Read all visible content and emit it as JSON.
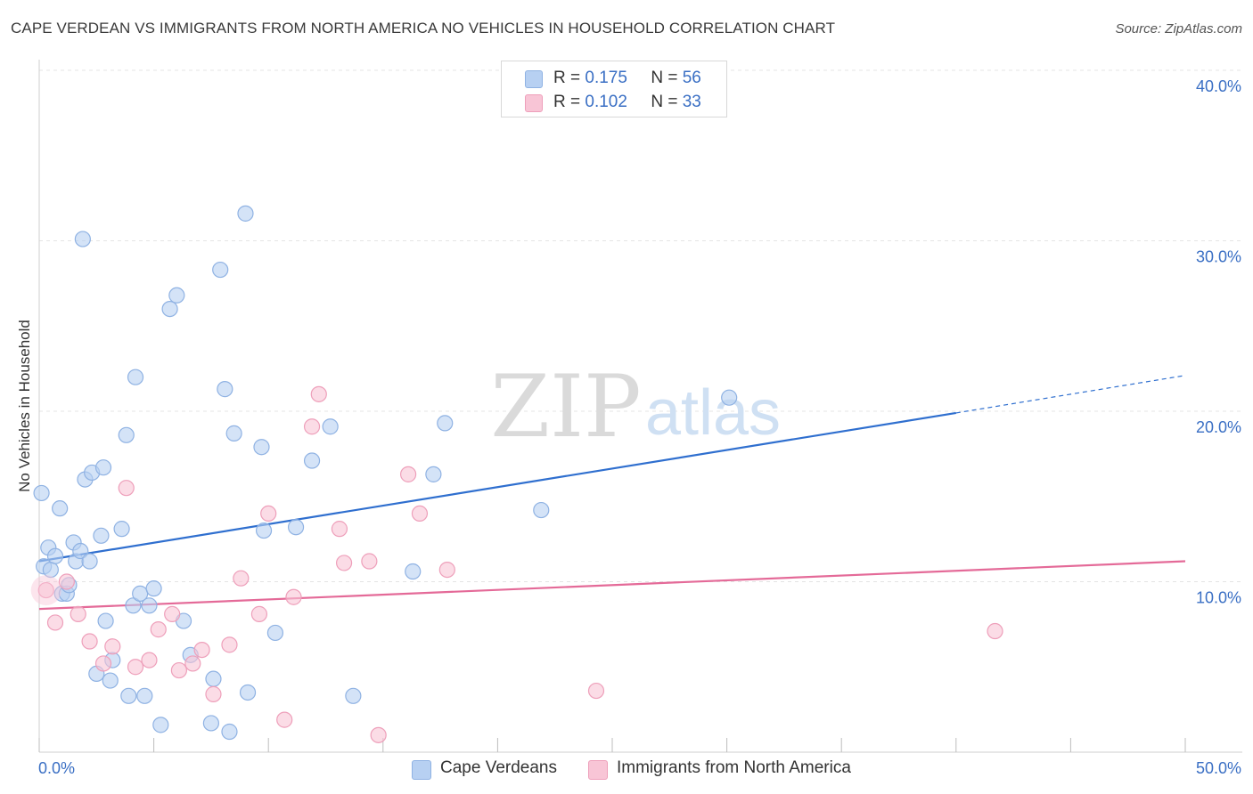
{
  "title": "CAPE VERDEAN VS IMMIGRANTS FROM NORTH AMERICA NO VEHICLES IN HOUSEHOLD CORRELATION CHART",
  "source": "Source: ZipAtlas.com",
  "watermark": {
    "zip": "ZIP",
    "atlas": "atlas"
  },
  "legend_top": [
    {
      "r_label": "R =",
      "r_value": "0.175",
      "n_label": "N =",
      "n_value": "56"
    },
    {
      "r_label": "R =",
      "r_value": "0.102",
      "n_label": "N =",
      "n_value": "33"
    }
  ],
  "colors": {
    "blue_fill": "#b7d0f2",
    "blue_stroke": "#8fb2e3",
    "blue_line": "#2f6fcf",
    "pink_fill": "#f8c5d6",
    "pink_stroke": "#ee9fba",
    "pink_line": "#e46a98",
    "axis_text": "#3a6fc4",
    "grid": "#e4e4e4"
  },
  "chart_data": {
    "type": "scatter",
    "title": "CAPE VERDEAN VS IMMIGRANTS FROM NORTH AMERICA NO VEHICLES IN HOUSEHOLD CORRELATION CHART",
    "xlabel": "",
    "ylabel": "No Vehicles in Household",
    "xlim": [
      0,
      50
    ],
    "ylim": [
      0,
      40
    ],
    "x_tick_labels": [
      "0.0%",
      "50.0%"
    ],
    "y_ticks": [
      10,
      20,
      30,
      40
    ],
    "y_tick_labels": [
      "10.0%",
      "20.0%",
      "30.0%",
      "40.0%"
    ],
    "series": [
      {
        "name": "Cape Verdeans",
        "r": 0.175,
        "n": 56,
        "trend": {
          "x0": 0,
          "y0": 11.2,
          "x1": 40,
          "y1": 19.9,
          "dash_to_x": 50,
          "dash_to_y": 22.1
        },
        "points": [
          [
            0.1,
            15.2
          ],
          [
            0.2,
            10.9
          ],
          [
            0.4,
            12.0
          ],
          [
            0.5,
            10.7
          ],
          [
            0.7,
            11.5
          ],
          [
            0.9,
            14.3
          ],
          [
            1.0,
            9.3
          ],
          [
            1.2,
            9.3
          ],
          [
            1.3,
            9.8
          ],
          [
            1.5,
            12.3
          ],
          [
            1.6,
            11.2
          ],
          [
            1.8,
            11.8
          ],
          [
            1.9,
            30.1
          ],
          [
            2.0,
            16.0
          ],
          [
            2.2,
            11.2
          ],
          [
            2.3,
            16.4
          ],
          [
            2.5,
            4.6
          ],
          [
            2.7,
            12.7
          ],
          [
            2.8,
            16.7
          ],
          [
            2.9,
            7.7
          ],
          [
            3.1,
            4.2
          ],
          [
            3.2,
            5.4
          ],
          [
            3.6,
            13.1
          ],
          [
            3.8,
            18.6
          ],
          [
            3.9,
            3.3
          ],
          [
            4.1,
            8.6
          ],
          [
            4.2,
            22.0
          ],
          [
            4.4,
            9.3
          ],
          [
            4.6,
            3.3
          ],
          [
            4.8,
            8.6
          ],
          [
            5.0,
            9.6
          ],
          [
            5.3,
            1.6
          ],
          [
            5.7,
            26.0
          ],
          [
            6.0,
            26.8
          ],
          [
            6.3,
            7.7
          ],
          [
            6.6,
            5.7
          ],
          [
            7.5,
            1.7
          ],
          [
            7.6,
            4.3
          ],
          [
            7.9,
            28.3
          ],
          [
            8.1,
            21.3
          ],
          [
            8.3,
            1.2
          ],
          [
            8.5,
            18.7
          ],
          [
            9.0,
            31.6
          ],
          [
            9.1,
            3.5
          ],
          [
            9.7,
            17.9
          ],
          [
            9.8,
            13.0
          ],
          [
            10.3,
            7.0
          ],
          [
            11.2,
            13.2
          ],
          [
            11.9,
            17.1
          ],
          [
            12.7,
            19.1
          ],
          [
            13.7,
            3.3
          ],
          [
            16.3,
            10.6
          ],
          [
            17.2,
            16.3
          ],
          [
            17.7,
            19.3
          ],
          [
            21.9,
            14.2
          ],
          [
            30.1,
            20.8
          ]
        ]
      },
      {
        "name": "Immigrants from North America",
        "r": 0.102,
        "n": 33,
        "trend": {
          "x0": 0,
          "y0": 8.4,
          "x1": 50,
          "y1": 11.2
        },
        "points": [
          [
            0.3,
            9.5
          ],
          [
            0.7,
            7.6
          ],
          [
            1.2,
            10.0
          ],
          [
            1.7,
            8.1
          ],
          [
            2.2,
            6.5
          ],
          [
            2.8,
            5.2
          ],
          [
            3.2,
            6.2
          ],
          [
            3.8,
            15.5
          ],
          [
            4.2,
            5.0
          ],
          [
            4.8,
            5.4
          ],
          [
            5.2,
            7.2
          ],
          [
            5.8,
            8.1
          ],
          [
            6.1,
            4.8
          ],
          [
            6.7,
            5.2
          ],
          [
            7.1,
            6.0
          ],
          [
            7.6,
            3.4
          ],
          [
            8.3,
            6.3
          ],
          [
            8.8,
            10.2
          ],
          [
            9.6,
            8.1
          ],
          [
            10.0,
            14.0
          ],
          [
            10.7,
            1.9
          ],
          [
            11.1,
            9.1
          ],
          [
            11.9,
            19.1
          ],
          [
            12.2,
            21.0
          ],
          [
            13.1,
            13.1
          ],
          [
            13.3,
            11.1
          ],
          [
            14.4,
            11.2
          ],
          [
            14.8,
            1.0
          ],
          [
            16.1,
            16.3
          ],
          [
            16.6,
            14.0
          ],
          [
            17.8,
            10.7
          ],
          [
            24.3,
            3.6
          ],
          [
            41.7,
            7.1
          ]
        ]
      }
    ]
  }
}
